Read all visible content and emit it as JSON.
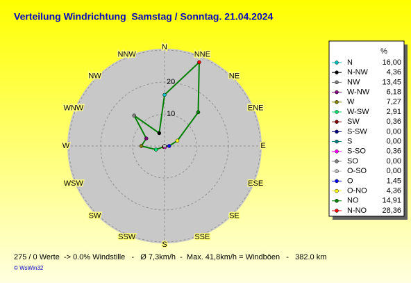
{
  "chart_data": {
    "type": "radar",
    "title": "Verteilung Windrichtung  Samstag / Sonntag. 21.04.2024",
    "directions": [
      "N",
      "NNE",
      "NE",
      "ENE",
      "E",
      "ESE",
      "SE",
      "SSE",
      "S",
      "SSW",
      "SW",
      "WSW",
      "W",
      "WNW",
      "NW",
      "NNW"
    ],
    "rlim": [
      0,
      30
    ],
    "rticks": [
      10,
      20
    ],
    "line_color": "#008000",
    "legend_header": "%",
    "series": {
      "names": [
        "N",
        "N-NW",
        "NW",
        "W-NW",
        "W",
        "W-SW",
        "SW",
        "S-SW",
        "S",
        "S-SO",
        "SO",
        "O-SO",
        "O",
        "O-NO",
        "NO",
        "N-NO"
      ],
      "colors": [
        "#00c0c0",
        "#000000",
        "#808080",
        "#800080",
        "#808000",
        "#00e070",
        "#800000",
        "#000080",
        "#008080",
        "#ff00ff",
        "#808080",
        "#c0c0c0",
        "#0000ff",
        "#ffff00",
        "#008000",
        "#ff0000"
      ],
      "values": [
        16.0,
        4.36,
        13.45,
        6.18,
        7.27,
        2.91,
        0.36,
        0.0,
        0.0,
        0.36,
        0.0,
        0.0,
        1.45,
        4.36,
        14.91,
        28.36
      ],
      "value_labels": [
        "16,00",
        "4,36",
        "13,45",
        "6,18",
        "7,27",
        "2,91",
        "0,36",
        "0,00",
        "0,00",
        "0,36",
        "0,00",
        "0,00",
        "1,45",
        "4,36",
        "14,91",
        "28,36"
      ]
    },
    "footer": "275 / 0 Werte  -> 0.0% Windstille   -   Ø 7,3km/h  -  Max. 41,8km/h = Windböen   -   382.0 km",
    "credit": "© WsWin32"
  }
}
